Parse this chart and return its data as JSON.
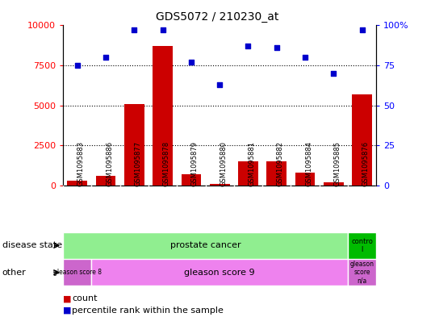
{
  "title": "GDS5072 / 210230_at",
  "samples": [
    "GSM1095883",
    "GSM1095886",
    "GSM1095877",
    "GSM1095878",
    "GSM1095879",
    "GSM1095880",
    "GSM1095881",
    "GSM1095882",
    "GSM1095884",
    "GSM1095885",
    "GSM1095876"
  ],
  "counts": [
    300,
    600,
    5100,
    8700,
    700,
    100,
    1500,
    1500,
    800,
    200,
    5700
  ],
  "percentiles": [
    75,
    80,
    97,
    97,
    77,
    63,
    87,
    86,
    80,
    70,
    97
  ],
  "ylim_left": [
    0,
    10000
  ],
  "ylim_right": [
    0,
    100
  ],
  "yticks_left": [
    0,
    2500,
    5000,
    7500,
    10000
  ],
  "yticks_right": [
    0,
    25,
    50,
    75,
    100
  ],
  "ytick_right_labels": [
    "0",
    "25",
    "50",
    "75",
    "100%"
  ],
  "bar_color": "#cc0000",
  "scatter_color": "#0000cc",
  "disease_state_green": "#90ee90",
  "control_green": "#00bb00",
  "gleason8_color": "#cc66cc",
  "gleason9_color": "#ee82ee",
  "gleasonNA_color": "#cc66cc",
  "bg_color": "#ffffff",
  "tick_area_bg": "#c8c8c8",
  "legend_count_color": "#cc0000",
  "legend_percentile_color": "#0000cc"
}
